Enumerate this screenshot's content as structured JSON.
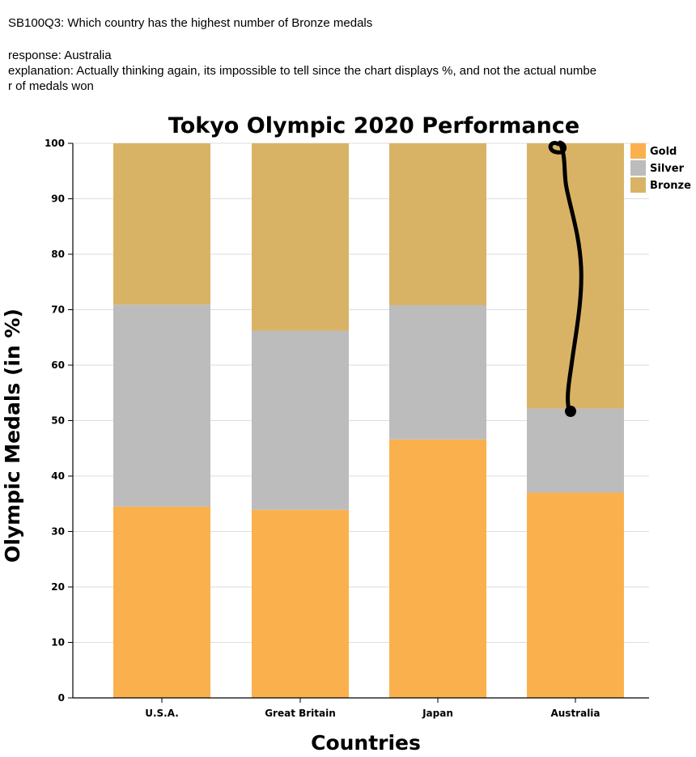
{
  "question": "SB100Q3: Which country has the highest number of Bronze medals",
  "response": "response: Australia",
  "explanation_line1": "explanation: Actually thinking again, its impossible to tell since the chart displays %, and not the actual numbe",
  "explanation_line2": "r of medals won",
  "chart_data": {
    "type": "bar",
    "stacked": true,
    "title": "Tokyo Olympic 2020 Performance",
    "xlabel": "Countries",
    "ylabel": "Olympic Medals (in %)",
    "ylim": [
      0,
      100
    ],
    "yticks": [
      0,
      10,
      20,
      30,
      40,
      50,
      60,
      70,
      80,
      90,
      100
    ],
    "categories": [
      "U.S.A.",
      "Great Britain",
      "Japan",
      "Australia"
    ],
    "series": [
      {
        "name": "Gold",
        "color": "#fbb04e",
        "values": [
          34.5,
          33.9,
          46.6,
          37.0
        ]
      },
      {
        "name": "Silver",
        "color": "#bcbcbc",
        "values": [
          36.4,
          32.3,
          24.2,
          15.2
        ]
      },
      {
        "name": "Bronze",
        "color": "#d9b365",
        "values": [
          29.1,
          33.8,
          29.2,
          47.8
        ]
      }
    ],
    "grid": true,
    "legend_position": "top-right",
    "annotation": "hand-drawn black squiggle on the Australia Bronze segment"
  }
}
